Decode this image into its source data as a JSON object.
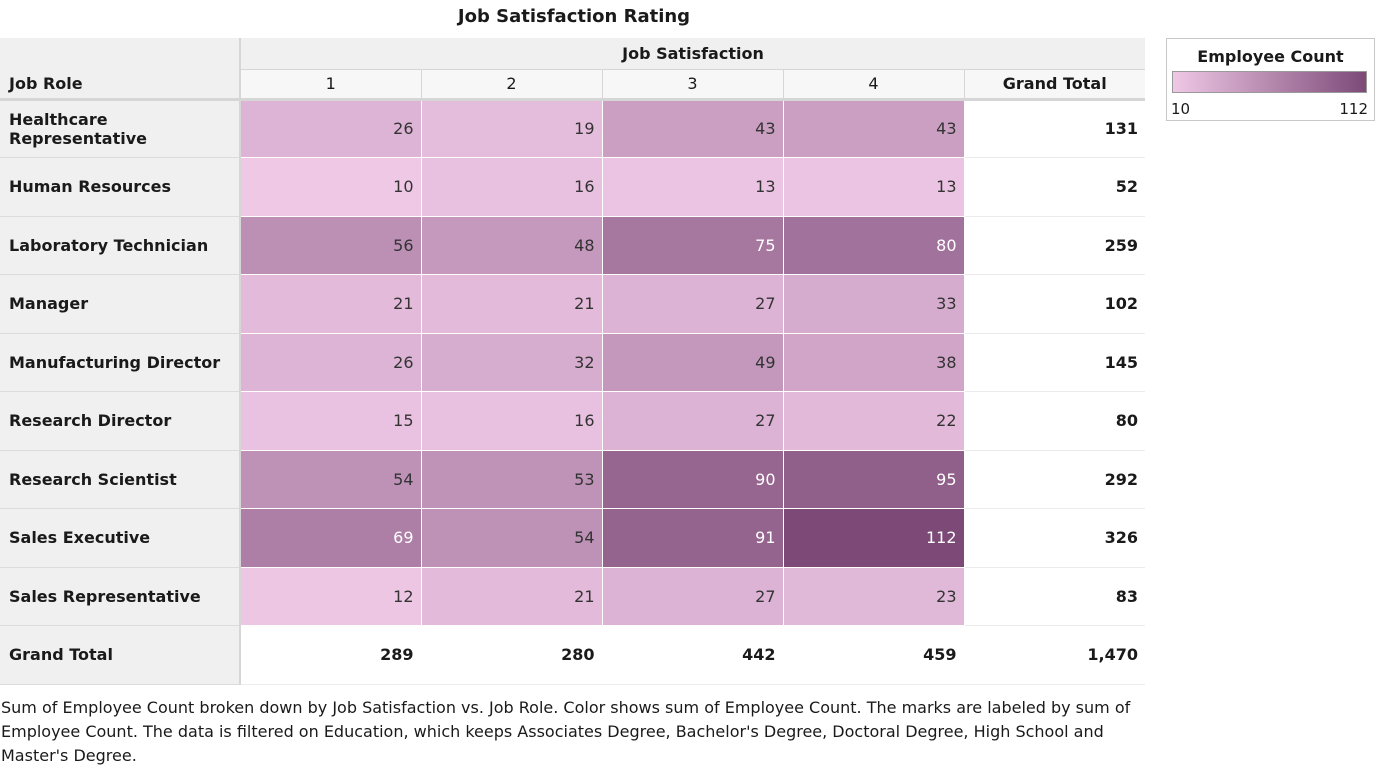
{
  "title": "Job Satisfaction Rating",
  "row_axis_label": "Job Role",
  "column_axis_label": "Job Satisfaction",
  "grand_total_label": "Grand Total",
  "legend": {
    "title": "Employee Count",
    "min_label": "10",
    "max_label": "112",
    "min_value": 10,
    "max_value": 112,
    "color_low": "#efc8e6",
    "color_high": "#7d4a78"
  },
  "caption": "Sum of Employee Count broken down by Job Satisfaction vs. Job Role.  Color shows sum of Employee Count.  The marks are labeled by sum of Employee Count. The data is filtered on Education, which keeps Associates Degree, Bachelor's Degree, Doctoral Degree, High School and Master's Degree.",
  "chart_data": {
    "type": "heatmap",
    "columns": [
      "1",
      "2",
      "3",
      "4"
    ],
    "rows": [
      {
        "label": "Healthcare Representative",
        "values": [
          26,
          19,
          43,
          43
        ],
        "total": "131"
      },
      {
        "label": "Human Resources",
        "values": [
          10,
          16,
          13,
          13
        ],
        "total": "52"
      },
      {
        "label": "Laboratory Technician",
        "values": [
          56,
          48,
          75,
          80
        ],
        "total": "259"
      },
      {
        "label": "Manager",
        "values": [
          21,
          21,
          27,
          33
        ],
        "total": "102"
      },
      {
        "label": "Manufacturing Director",
        "values": [
          26,
          32,
          49,
          38
        ],
        "total": "145"
      },
      {
        "label": "Research Director",
        "values": [
          15,
          16,
          27,
          22
        ],
        "total": "80"
      },
      {
        "label": "Research Scientist",
        "values": [
          54,
          53,
          90,
          95
        ],
        "total": "292"
      },
      {
        "label": "Sales Executive",
        "values": [
          69,
          54,
          91,
          112
        ],
        "total": "326"
      },
      {
        "label": "Sales Representative",
        "values": [
          12,
          21,
          27,
          23
        ],
        "total": "83"
      }
    ],
    "column_totals": [
      "289",
      "280",
      "442",
      "459"
    ],
    "overall_total": "1,470"
  }
}
